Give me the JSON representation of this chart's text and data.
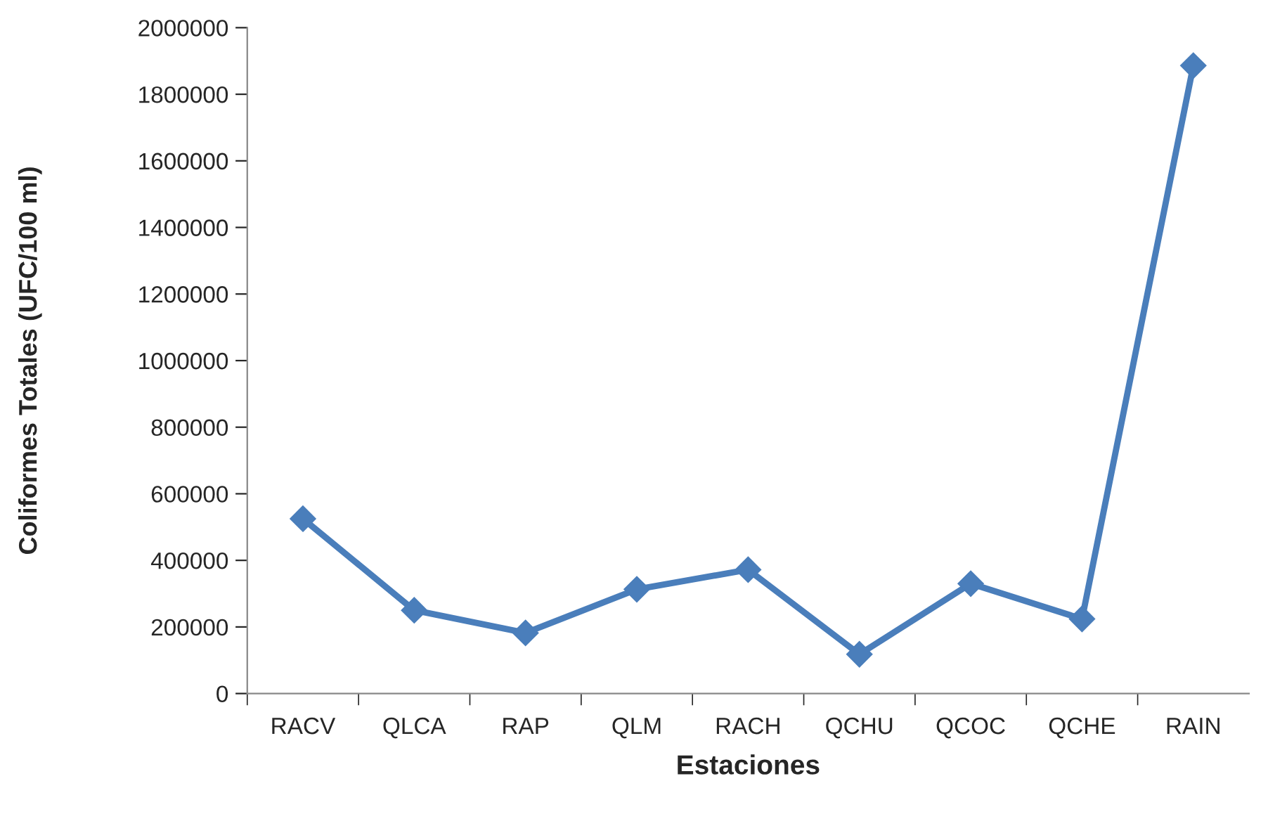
{
  "chart_data": {
    "type": "line",
    "xlabel": "Estaciones",
    "ylabel": "Coliformes Totales (UFC/100 ml)",
    "categories": [
      "RACV",
      "QLCA",
      "RAP",
      "QLM",
      "RACH",
      "QCHU",
      "QCOC",
      "QCHE",
      "RAIN"
    ],
    "series": [
      {
        "color": "#4a7ebb",
        "values": [
          525000,
          250000,
          182000,
          313000,
          372000,
          118000,
          330000,
          224000,
          1886000
        ]
      }
    ],
    "ylim": [
      0,
      2000000
    ],
    "yticks": [
      0,
      200000,
      400000,
      600000,
      800000,
      1000000,
      1200000,
      1400000,
      1600000,
      1800000,
      2000000
    ],
    "grid": false,
    "marker": "diamond",
    "line_style": "solid"
  }
}
